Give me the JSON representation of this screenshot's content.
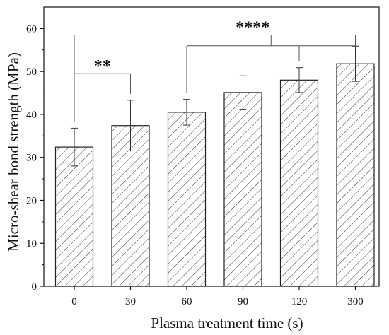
{
  "chart_data": {
    "type": "bar",
    "xlabel": "Plasma treatment time (s)",
    "ylabel": "Micro-shear bond strength (MPa)",
    "categories": [
      "0",
      "30",
      "60",
      "90",
      "120",
      "300"
    ],
    "values": [
      32.4,
      37.4,
      40.5,
      45.1,
      48.0,
      51.8
    ],
    "errors": [
      4.4,
      5.9,
      3.0,
      3.9,
      2.9,
      4.1
    ],
    "ylim": [
      0,
      65
    ],
    "yticks": [
      0,
      10,
      20,
      30,
      40,
      50,
      60
    ],
    "pattern": "diagonal-hatch",
    "grid": false,
    "significance": [
      {
        "label": "**",
        "from": "0",
        "to": "30",
        "y": 49.5
      },
      {
        "label": "****",
        "from": "0",
        "to": "300",
        "y": 58.5,
        "group": [
          "60",
          "90",
          "120",
          "300"
        ],
        "group_y": 56
      }
    ]
  }
}
